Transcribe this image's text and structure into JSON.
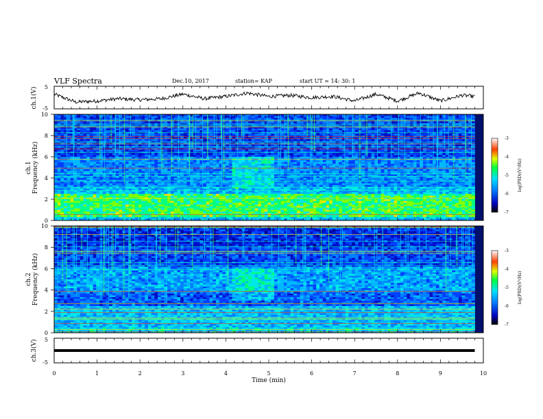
{
  "header": {
    "title": "VLF Spectra",
    "date": "Dec.10, 2017",
    "station": "station= KAP",
    "start": "start  UT =   14: 30: 1"
  },
  "chart_data": [
    {
      "type": "line",
      "panel": "ch1-waveform",
      "ylabel": "ch.1(V)",
      "ylim": [
        -5,
        5
      ],
      "yticks": [
        "5",
        "-5"
      ],
      "x": [
        0,
        0.5,
        1,
        1.5,
        2,
        2.5,
        3,
        3.5,
        4,
        4.5,
        5,
        5.5,
        6,
        6.5,
        7,
        7.5,
        8,
        8.5,
        9,
        9.5,
        9.8
      ],
      "values": [
        1.5,
        -2.0,
        -1.5,
        -0.5,
        -1.0,
        -0.5,
        1.5,
        -0.5,
        0.5,
        2.0,
        0.5,
        1.0,
        0.0,
        0.5,
        -1.5,
        1.5,
        -1.5,
        2.0,
        -1.5,
        1.0,
        0.5
      ]
    },
    {
      "type": "heatmap",
      "panel": "ch1-spectrogram",
      "ylabel": "Frequency (kHz)",
      "channel_label": "ch.1",
      "ylim": [
        0,
        10
      ],
      "yticks": [
        "0",
        "2",
        "4",
        "6",
        "8",
        "10"
      ],
      "colorbar": {
        "label": "log(PSD)(V²/Hz)",
        "range": [
          -7,
          -3
        ],
        "ticks": [
          "-3",
          "-4",
          "-5",
          "-6",
          "-7"
        ]
      }
    },
    {
      "type": "heatmap",
      "panel": "ch2-spectrogram",
      "ylabel": "Frequency (kHz)",
      "channel_label": "ch.2",
      "ylim": [
        0,
        10
      ],
      "yticks": [
        "0",
        "2",
        "4",
        "6",
        "8",
        "10"
      ],
      "colorbar": {
        "label": "log(PSD)(V²/Hz)",
        "range": [
          -7,
          -3
        ],
        "ticks": [
          "-3",
          "-4",
          "-5",
          "-6",
          "-7"
        ]
      }
    },
    {
      "type": "line",
      "panel": "ch3-waveform",
      "ylabel": "ch.3(V)",
      "ylim": [
        -5,
        5
      ],
      "yticks": [
        "5",
        "-5"
      ],
      "x": [
        0,
        9.8
      ],
      "values": [
        0,
        0
      ]
    }
  ],
  "xaxis": {
    "label": "Time  (min)",
    "ticks": [
      "0",
      "1",
      "2",
      "3",
      "4",
      "5",
      "6",
      "7",
      "8",
      "9",
      "10"
    ],
    "xlim": [
      0,
      10
    ]
  },
  "colors": {
    "low": "#000060",
    "mid": "#00c0ff",
    "high": "#ff2000",
    "trace": "#000000"
  }
}
